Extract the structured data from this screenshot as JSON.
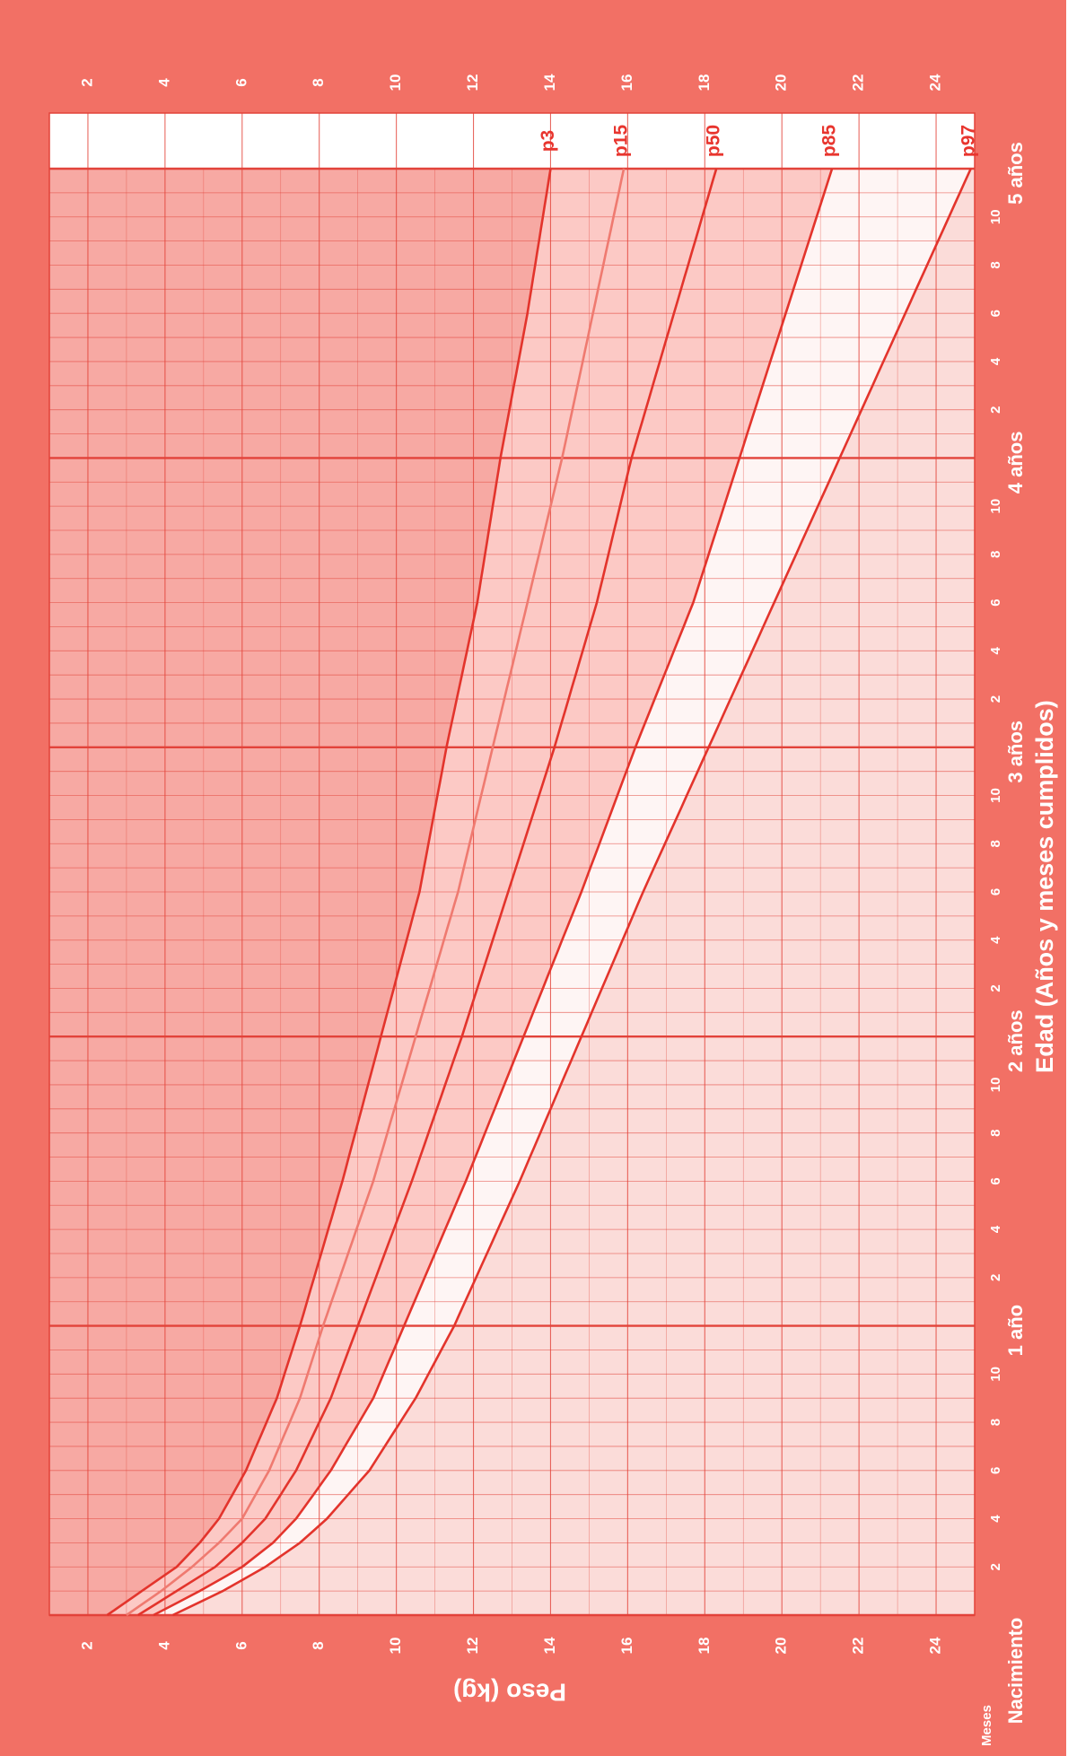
{
  "colors": {
    "frame": "#f27065",
    "line_main": "#e3342c",
    "line_p15": "#ef7a70",
    "label": "#e8352e",
    "band_top": "#fbdcd9",
    "band_white": "#fef5f4",
    "band_mid": "#fcc9c5",
    "band_bottom": "#f7a9a3",
    "grid": "#e2433a"
  },
  "labels": {
    "ylabel": "Peso (kg)",
    "xlabel": "Edad (Años y meses cumplidos)",
    "meses": "Meses",
    "nacimiento": "Nacimiento",
    "years": [
      "1 año",
      "2 años",
      "3 años",
      "4 años",
      "5 años"
    ]
  },
  "chart_data": {
    "type": "line",
    "xlabel": "Edad (Años y meses cumplidos)",
    "ylabel": "Peso (kg)",
    "xlim": [
      0,
      60
    ],
    "ylim": [
      1,
      25
    ],
    "x_unit": "months",
    "y_ticks": [
      2,
      4,
      6,
      8,
      10,
      12,
      14,
      16,
      18,
      20,
      22,
      24
    ],
    "month_ticks": [
      "2",
      "4",
      "6",
      "8",
      "10"
    ],
    "grid": true,
    "ages": [
      0,
      1,
      2,
      3,
      4,
      6,
      9,
      12,
      18,
      24,
      30,
      36,
      42,
      48,
      54,
      60
    ],
    "series": [
      {
        "name": "p97",
        "values": [
          4.2,
          5.5,
          6.6,
          7.5,
          8.2,
          9.3,
          10.5,
          11.5,
          13.2,
          14.8,
          16.4,
          18.1,
          19.8,
          21.5,
          23.2,
          24.9
        ]
      },
      {
        "name": "p85",
        "values": [
          3.7,
          4.9,
          6.0,
          6.8,
          7.4,
          8.3,
          9.4,
          10.2,
          11.8,
          13.3,
          14.8,
          16.2,
          17.7,
          18.9,
          20.1,
          21.3
        ]
      },
      {
        "name": "p50",
        "values": [
          3.3,
          4.3,
          5.3,
          6.0,
          6.6,
          7.4,
          8.3,
          9.0,
          10.4,
          11.7,
          12.9,
          14.1,
          15.2,
          16.1,
          17.2,
          18.3
        ]
      },
      {
        "name": "p15",
        "values": [
          3.0,
          3.9,
          4.7,
          5.4,
          6.0,
          6.7,
          7.5,
          8.1,
          9.4,
          10.5,
          11.6,
          12.5,
          13.4,
          14.3,
          15.1,
          15.9
        ]
      },
      {
        "name": "p3",
        "values": [
          2.5,
          3.4,
          4.3,
          4.9,
          5.4,
          6.1,
          6.9,
          7.5,
          8.6,
          9.6,
          10.6,
          11.3,
          12.1,
          12.7,
          13.4,
          14.0
        ]
      }
    ]
  }
}
